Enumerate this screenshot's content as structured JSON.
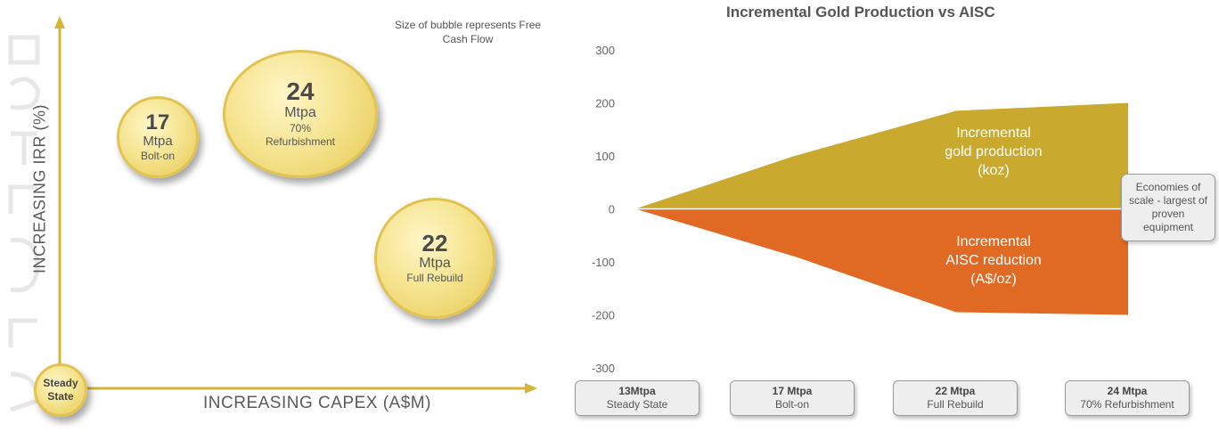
{
  "left": {
    "note": "Size of bubble represents Free Cash Flow",
    "ylabel": "INCREASING IRR (%)",
    "xlabel": "INCREASING CAPEX (A$M)",
    "origin": {
      "line1": "Steady",
      "line2": "State"
    },
    "bubbles": [
      {
        "value": "17",
        "unit": "Mtpa",
        "desc": "Bolt-on"
      },
      {
        "value": "24",
        "unit": "Mtpa",
        "desc": "70% Refurbishment"
      },
      {
        "value": "22",
        "unit": "Mtpa",
        "desc": "Full Rebuild"
      }
    ],
    "colors": {
      "axis": "#d4b43a",
      "bubble": "#f4e08a"
    }
  },
  "chart_data": {
    "type": "area",
    "title": "Incremental Gold Production vs AISC",
    "categories": [
      "13Mtpa",
      "17 Mtpa",
      "22 Mtpa",
      "24 Mtpa"
    ],
    "category_sub": [
      "Steady State",
      "Bolt-on",
      "Full Rebuild",
      "70% Refurbishment"
    ],
    "ylim": [
      -300,
      300
    ],
    "yticks": [
      "300",
      "200",
      "100",
      "0",
      "-100",
      "-200",
      "-300"
    ],
    "grid": false,
    "series": [
      {
        "name": "Incremental gold production (koz)",
        "label_lines": [
          "Incremental",
          "gold production",
          "(koz)"
        ],
        "values": [
          0,
          100,
          185,
          200
        ],
        "color": "#c9a92e"
      },
      {
        "name": "Incremental AISC reduction (A$/oz)",
        "label_lines": [
          "Incremental",
          "AISC reduction",
          "(A$/oz)"
        ],
        "values": [
          0,
          -90,
          -195,
          -200
        ],
        "color": "#e06a24"
      }
    ],
    "annotation": "Economies of scale - largest of proven equipment"
  }
}
